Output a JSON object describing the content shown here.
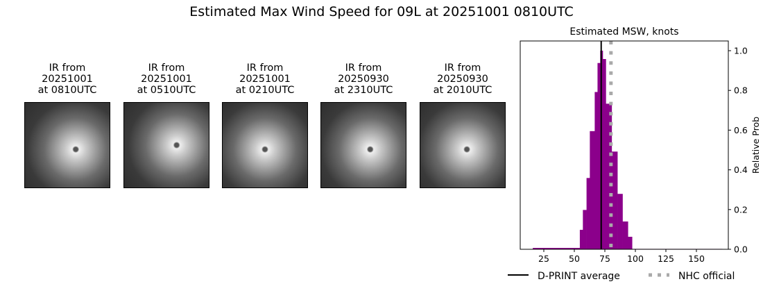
{
  "title": "Estimated Max Wind Speed for 09L at 20251001 0810UTC",
  "panels": [
    {
      "line1": "IR from",
      "line2": "20251001",
      "line3": "at 0810UTC"
    },
    {
      "line1": "IR from",
      "line2": "20251001",
      "line3": "at 0510UTC"
    },
    {
      "line1": "IR from",
      "line2": "20251001",
      "line3": "at 0210UTC"
    },
    {
      "line1": "IR from",
      "line2": "20250930",
      "line3": "at 2310UTC"
    },
    {
      "line1": "IR from",
      "line2": "20250930",
      "line3": "at 2010UTC"
    }
  ],
  "chart_data": {
    "type": "bar",
    "title": "Estimated MSW, knots",
    "xlabel": "",
    "ylabel": "Relative Prob",
    "xlim": [
      10,
      180
    ],
    "ylim": [
      0,
      1.05
    ],
    "xticks": [
      "25",
      "50",
      "75",
      "100",
      "125",
      "150"
    ],
    "yticks": [
      "0.0",
      "0.2",
      "0.4",
      "0.6",
      "0.8",
      "1.0"
    ],
    "bar_color": "#8b008b",
    "bins": [
      {
        "x0": 16,
        "x1": 54.5,
        "value": 0.007
      },
      {
        "x0": 54.5,
        "x1": 57,
        "value": 0.098
      },
      {
        "x0": 57,
        "x1": 60,
        "value": 0.198
      },
      {
        "x0": 60,
        "x1": 62.7,
        "value": 0.359
      },
      {
        "x0": 62.7,
        "x1": 66.7,
        "value": 0.595
      },
      {
        "x0": 66.7,
        "x1": 69,
        "value": 0.792
      },
      {
        "x0": 69,
        "x1": 71.2,
        "value": 0.938
      },
      {
        "x0": 71.2,
        "x1": 73.3,
        "value": 1.0
      },
      {
        "x0": 73.3,
        "x1": 75.8,
        "value": 0.958
      },
      {
        "x0": 75.8,
        "x1": 80.6,
        "value": 0.733
      },
      {
        "x0": 80.6,
        "x1": 85.3,
        "value": 0.492
      },
      {
        "x0": 85.3,
        "x1": 89.5,
        "value": 0.279
      },
      {
        "x0": 89.5,
        "x1": 93.9,
        "value": 0.14
      },
      {
        "x0": 93.9,
        "x1": 97.3,
        "value": 0.063
      },
      {
        "x0": 97.3,
        "x1": 171,
        "value": 0.002
      }
    ],
    "lines": [
      {
        "name": "D-PRINT average",
        "x": 72,
        "color": "#000000",
        "style": "solid"
      },
      {
        "name": "NHC official",
        "x": 80,
        "color": "#a9a9a9",
        "style": "dotted"
      }
    ],
    "legend": "bottom"
  }
}
